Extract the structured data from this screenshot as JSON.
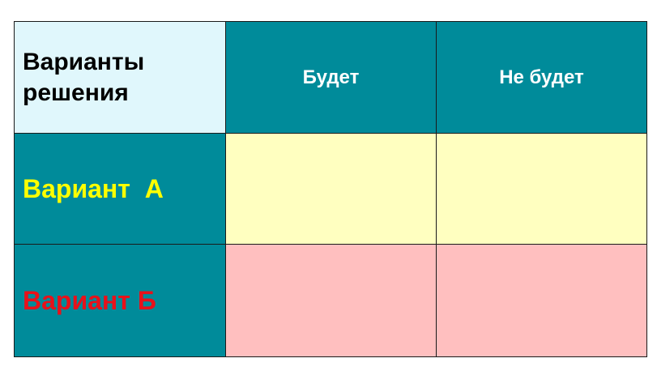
{
  "table": {
    "corner_label_line1": "Варианты",
    "corner_label_line2": "решения",
    "columns": [
      "Будет",
      "Не будет"
    ],
    "rows": [
      {
        "label": "Вариант  А",
        "label_color": "#ffff00",
        "cell_color": "#ffffc0",
        "cells": [
          "",
          ""
        ]
      },
      {
        "label": "Вариант Б",
        "label_color": "#e8111a",
        "cell_color": "#ffbfbf",
        "cells": [
          "",
          ""
        ]
      }
    ],
    "header_color": "#008b9a",
    "corner_color": "#e0f7fc"
  }
}
